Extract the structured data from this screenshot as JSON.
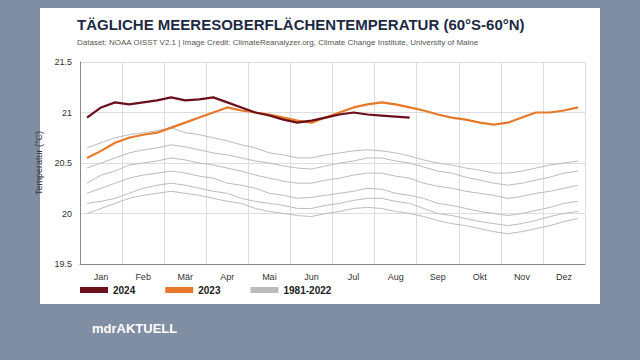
{
  "chart_data": {
    "type": "line",
    "title": "TÄGLICHE MEERESOBERFLÄCHENTEMPERATUR (60°S-60°N)",
    "subtitle": "Dataset: NOAA OISST V2.1 | Image Credit: ClimateReanalyzer.org, Climate Change Institute, University of Maine",
    "y_label": "Temperatur (°C)",
    "annotations": [
      "mdrAKTUELL"
    ],
    "categories": [
      null,
      "Jan",
      null,
      null,
      "Feb",
      null,
      null,
      "Mär",
      null,
      null,
      "Apr",
      null,
      null,
      "Mai",
      null,
      null,
      "Jun",
      null,
      null,
      "Jul",
      null,
      null,
      "Aug",
      null,
      null,
      "Sep",
      null,
      null,
      "Okt",
      null,
      null,
      "Nov",
      null,
      null,
      "Dez",
      null
    ],
    "ylim": [
      19.5,
      21.5
    ],
    "yticks": [
      19.5,
      20,
      20.5,
      21,
      21.5
    ],
    "grid": true,
    "legend": "bottom",
    "series": [
      {
        "name": "1981-2022",
        "color": "#bbbbbb",
        "values": [
          20.0,
          20.05,
          20.1,
          20.15,
          20.18,
          20.2,
          20.22,
          20.2,
          20.18,
          20.15,
          20.12,
          20.1,
          20.05,
          20.02,
          20.0,
          19.98,
          19.97,
          20.0,
          20.02,
          20.05,
          20.06,
          20.05,
          20.02,
          20.0,
          19.97,
          19.93,
          19.9,
          19.88,
          19.85,
          19.82,
          19.8,
          19.82,
          19.85,
          19.88,
          19.92,
          19.95
        ]
      },
      {
        "name": "1981-2022",
        "color": "#bbbbbb",
        "values": [
          20.2,
          20.25,
          20.3,
          20.35,
          20.38,
          20.4,
          20.42,
          20.4,
          20.37,
          20.35,
          20.3,
          20.28,
          20.25,
          20.2,
          20.18,
          20.15,
          20.16,
          20.18,
          20.2,
          20.22,
          20.25,
          20.24,
          20.2,
          20.18,
          20.15,
          20.1,
          20.08,
          20.05,
          20.02,
          20.0,
          19.98,
          20.0,
          20.03,
          20.06,
          20.1,
          20.12
        ]
      },
      {
        "name": "1981-2022",
        "color": "#bbbbbb",
        "values": [
          20.3,
          20.38,
          20.42,
          20.48,
          20.5,
          20.52,
          20.55,
          20.53,
          20.5,
          20.48,
          20.45,
          20.42,
          20.38,
          20.35,
          20.32,
          20.3,
          20.3,
          20.33,
          20.35,
          20.38,
          20.4,
          20.4,
          20.37,
          20.35,
          20.3,
          20.27,
          20.25,
          20.22,
          20.2,
          20.18,
          20.15,
          20.17,
          20.2,
          20.22,
          20.25,
          20.28
        ]
      },
      {
        "name": "1981-2022",
        "color": "#bbbbbb",
        "values": [
          20.45,
          20.5,
          20.55,
          20.6,
          20.63,
          20.65,
          20.68,
          20.66,
          20.63,
          20.6,
          20.58,
          20.55,
          20.52,
          20.5,
          20.47,
          20.45,
          20.44,
          20.47,
          20.5,
          20.52,
          20.55,
          20.55,
          20.52,
          20.5,
          20.46,
          20.42,
          20.4,
          20.36,
          20.33,
          20.3,
          20.28,
          20.3,
          20.33,
          20.36,
          20.4,
          20.42
        ]
      },
      {
        "name": "1981-2022",
        "color": "#bbbbbb",
        "values": [
          20.65,
          20.7,
          20.75,
          20.78,
          20.8,
          20.82,
          20.85,
          20.8,
          20.78,
          20.75,
          20.72,
          20.68,
          20.65,
          20.6,
          20.58,
          20.55,
          20.55,
          20.58,
          20.6,
          20.62,
          20.63,
          20.62,
          20.6,
          20.57,
          20.53,
          20.5,
          20.48,
          20.45,
          20.43,
          20.4,
          20.4,
          20.42,
          20.45,
          20.48,
          20.5,
          20.52
        ]
      },
      {
        "name": "1981-2022",
        "color": "#bbbbbb",
        "values": [
          20.1,
          20.12,
          20.15,
          20.2,
          20.25,
          20.28,
          20.3,
          20.28,
          20.25,
          20.22,
          20.2,
          20.15,
          20.12,
          20.1,
          20.08,
          20.05,
          20.05,
          20.08,
          20.1,
          20.13,
          20.15,
          20.15,
          20.12,
          20.1,
          20.05,
          20.0,
          19.98,
          19.95,
          19.92,
          19.9,
          19.88,
          19.9,
          19.93,
          19.97,
          20.0,
          20.02
        ]
      },
      {
        "name": "2023",
        "color": "#e8782a",
        "values": [
          20.55,
          20.62,
          20.7,
          20.75,
          20.78,
          20.8,
          20.85,
          20.9,
          20.95,
          21.0,
          21.05,
          21.02,
          21.0,
          20.98,
          20.95,
          20.92,
          20.9,
          20.95,
          21.0,
          21.05,
          21.08,
          21.1,
          21.08,
          21.05,
          21.02,
          20.98,
          20.95,
          20.93,
          20.9,
          20.88,
          20.9,
          20.95,
          21.0,
          21.0,
          21.02,
          21.05
        ]
      },
      {
        "name": "2024",
        "color": "#6b0f1a",
        "values": [
          20.95,
          21.05,
          21.1,
          21.08,
          21.1,
          21.12,
          21.15,
          21.12,
          21.13,
          21.15,
          21.1,
          21.05,
          21.0,
          20.97,
          20.93,
          20.9,
          20.92,
          20.95,
          20.98,
          21.0,
          20.98,
          20.97,
          20.96,
          20.95,
          null,
          null,
          null,
          null,
          null,
          null,
          null,
          null,
          null,
          null,
          null,
          null
        ]
      }
    ]
  }
}
